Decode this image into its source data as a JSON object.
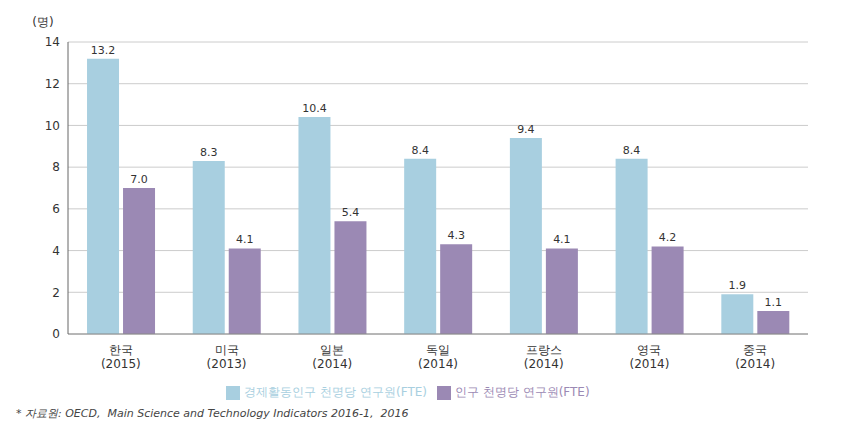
{
  "chart_data": {
    "type": "bar",
    "ylabel": "(명)",
    "annotations": [
      "* 자료원: OECD,  Main Science and Technology Indicators 2016-1,  2016"
    ],
    "categories": [
      "한국\n(2015)",
      "미국\n(2013)",
      "일본\n(2014)",
      "독일\n(2014)",
      "프랑스\n(2014)",
      "영국\n(2014)",
      "중국\n(2014)"
    ],
    "series": [
      {
        "name": "경제활동인구 천명당 연구원(FTE)",
        "color": "#a8cfe0",
        "values": [
          13.2,
          8.3,
          10.4,
          8.4,
          9.4,
          8.4,
          1.9
        ]
      },
      {
        "name": "인구 천명당 연구원(FTE)",
        "color": "#9b89b4",
        "values": [
          7.0,
          4.1,
          5.4,
          4.3,
          4.1,
          4.2,
          1.1
        ],
        "value_labels": [
          "7.0",
          "4.1",
          "5.4",
          "4.3",
          "4.1",
          "4.2",
          "1.1"
        ]
      }
    ],
    "ylim": [
      0,
      14
    ],
    "yticks": [
      0,
      2,
      4,
      6,
      8,
      10,
      12,
      14
    ],
    "grid": true,
    "legend": "bottom",
    "data_labels": true
  }
}
